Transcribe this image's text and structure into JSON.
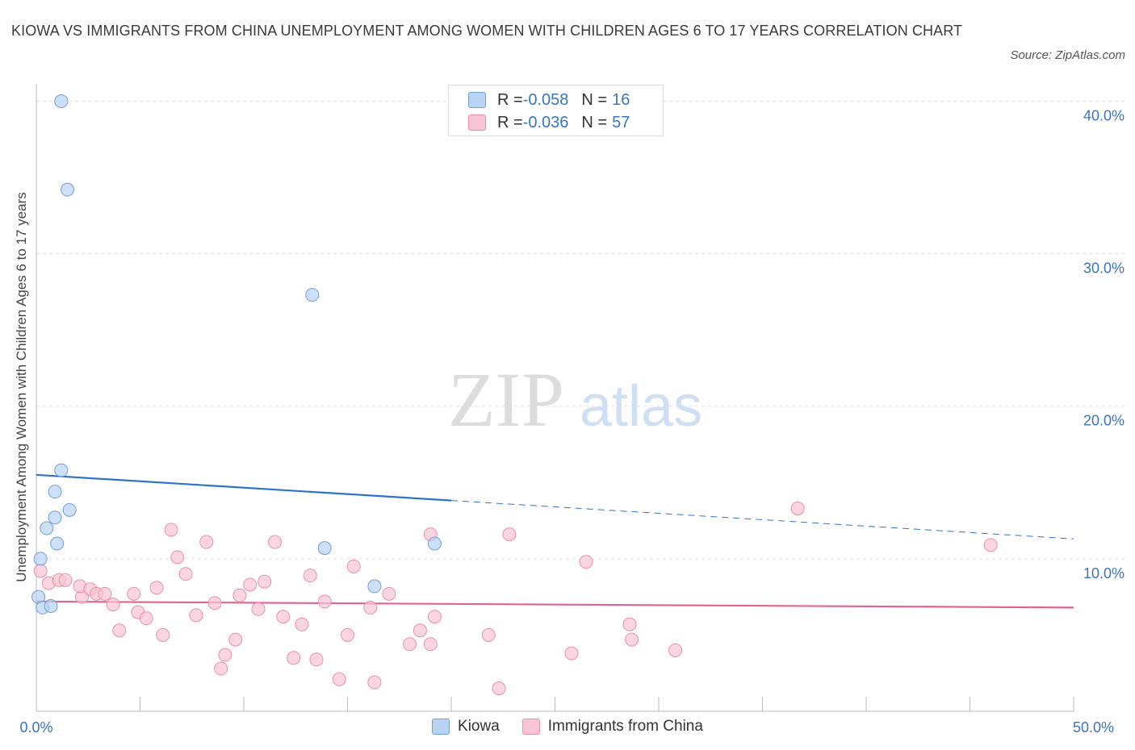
{
  "title": "KIOWA VS IMMIGRANTS FROM CHINA UNEMPLOYMENT AMONG WOMEN WITH CHILDREN AGES 6 TO 17 YEARS CORRELATION CHART",
  "source": "Source: ZipAtlas.com",
  "watermark": {
    "zip": "ZIP",
    "atlas": "atlas"
  },
  "legend": {
    "rows": [
      {
        "r_label": "R = ",
        "r_value": "-0.058",
        "n_label": "N = ",
        "n_value": "16"
      },
      {
        "r_label": "R = ",
        "r_value": "-0.036",
        "n_label": "N = ",
        "n_value": "57"
      }
    ]
  },
  "colors": {
    "kiowa_fill": "#b9d3f5",
    "kiowa_stroke": "#6f9fd8",
    "kiowa_line": "#2e73c8",
    "china_fill": "#f9c4d3",
    "china_stroke": "#e890aa",
    "china_line": "#e0648f",
    "axis_text": "#3b74c4",
    "grid": "#e0e0e0"
  },
  "chart_data": {
    "type": "scatter",
    "title": "KIOWA VS IMMIGRANTS FROM CHINA UNEMPLOYMENT AMONG WOMEN WITH CHILDREN AGES 6 TO 17 YEARS CORRELATION CHART",
    "xlabel": "",
    "ylabel": "Unemployment Among Women with Children Ages 6 to 17 years",
    "xlim": [
      0,
      50
    ],
    "ylim": [
      0,
      40.5
    ],
    "x_tick_labels": [
      {
        "value": 0,
        "label": "0.0%"
      },
      {
        "value": 50,
        "label": "50.0%"
      }
    ],
    "y_tick_labels": [
      {
        "value": 10,
        "label": "10.0%"
      },
      {
        "value": 20,
        "label": "20.0%"
      },
      {
        "value": 30,
        "label": "30.0%"
      },
      {
        "value": 40,
        "label": "40.0%"
      }
    ],
    "series": [
      {
        "name": "Kiowa",
        "points": [
          [
            1.2,
            40.0
          ],
          [
            1.5,
            34.2
          ],
          [
            13.3,
            27.3
          ],
          [
            1.2,
            15.8
          ],
          [
            0.9,
            14.4
          ],
          [
            1.6,
            13.2
          ],
          [
            0.9,
            12.7
          ],
          [
            0.5,
            12.0
          ],
          [
            1.0,
            11.0
          ],
          [
            13.9,
            10.7
          ],
          [
            19.2,
            11.0
          ],
          [
            0.2,
            10.0
          ],
          [
            16.3,
            8.2
          ],
          [
            0.1,
            7.5
          ],
          [
            0.3,
            6.8
          ],
          [
            0.7,
            6.9
          ]
        ],
        "trend": {
          "x0": 0,
          "y0": 15.5,
          "x1": 50,
          "y1": 11.3,
          "solid_until_x": 20
        }
      },
      {
        "name": "Immigrants from China",
        "points": [
          [
            0.2,
            9.2
          ],
          [
            0.6,
            8.4
          ],
          [
            1.1,
            8.6
          ],
          [
            1.4,
            8.6
          ],
          [
            2.2,
            7.5
          ],
          [
            2.1,
            8.2
          ],
          [
            2.6,
            8.0
          ],
          [
            2.9,
            7.7
          ],
          [
            3.3,
            7.7
          ],
          [
            3.7,
            7.0
          ],
          [
            4.0,
            5.3
          ],
          [
            4.7,
            7.7
          ],
          [
            4.9,
            6.5
          ],
          [
            5.3,
            6.1
          ],
          [
            5.8,
            8.1
          ],
          [
            6.1,
            5.0
          ],
          [
            6.5,
            11.9
          ],
          [
            6.8,
            10.1
          ],
          [
            7.2,
            9.0
          ],
          [
            7.7,
            6.3
          ],
          [
            8.2,
            11.1
          ],
          [
            8.6,
            7.1
          ],
          [
            8.9,
            2.8
          ],
          [
            9.1,
            3.7
          ],
          [
            9.6,
            4.7
          ],
          [
            9.8,
            7.6
          ],
          [
            10.3,
            8.3
          ],
          [
            10.7,
            6.7
          ],
          [
            11.0,
            8.5
          ],
          [
            11.5,
            11.1
          ],
          [
            11.9,
            6.2
          ],
          [
            12.4,
            3.5
          ],
          [
            12.8,
            5.7
          ],
          [
            13.2,
            8.9
          ],
          [
            13.5,
            3.4
          ],
          [
            13.9,
            7.2
          ],
          [
            14.6,
            2.1
          ],
          [
            15.0,
            5.0
          ],
          [
            15.3,
            9.5
          ],
          [
            16.1,
            6.8
          ],
          [
            16.3,
            1.9
          ],
          [
            17.0,
            7.7
          ],
          [
            18.0,
            4.4
          ],
          [
            18.5,
            5.3
          ],
          [
            19.0,
            4.4
          ],
          [
            19.2,
            6.2
          ],
          [
            19.0,
            11.6
          ],
          [
            21.8,
            5.0
          ],
          [
            22.3,
            1.5
          ],
          [
            22.8,
            11.6
          ],
          [
            25.8,
            3.8
          ],
          [
            26.5,
            9.8
          ],
          [
            28.6,
            5.7
          ],
          [
            28.7,
            4.7
          ],
          [
            30.8,
            4.0
          ],
          [
            36.7,
            13.3
          ],
          [
            46.0,
            10.9
          ]
        ],
        "trend": {
          "x0": 0,
          "y0": 7.2,
          "x1": 50,
          "y1": 6.8,
          "solid_until_x": 50
        }
      }
    ]
  }
}
